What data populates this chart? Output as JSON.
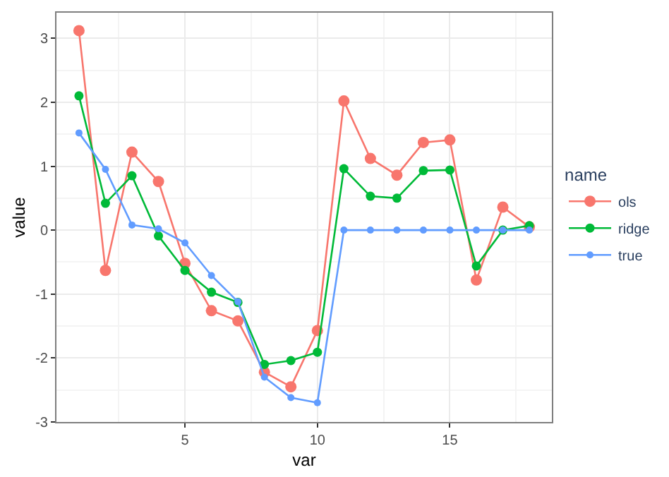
{
  "chart_data": {
    "type": "line",
    "xlabel": "var",
    "ylabel": "value",
    "legend_title": "name",
    "x": [
      1,
      2,
      3,
      4,
      5,
      6,
      7,
      8,
      9,
      10,
      11,
      12,
      13,
      14,
      15,
      16,
      17,
      18
    ],
    "series": [
      {
        "name": "ols",
        "color": "#f8766d",
        "values": [
          3.12,
          -0.63,
          1.22,
          0.76,
          -0.52,
          -1.26,
          -1.42,
          -2.22,
          -2.45,
          -1.57,
          2.02,
          1.12,
          0.86,
          1.37,
          1.41,
          -0.78,
          0.36,
          0.05
        ]
      },
      {
        "name": "ridge",
        "color": "#00ba38",
        "values": [
          2.1,
          0.42,
          0.85,
          -0.09,
          -0.63,
          -0.97,
          -1.13,
          -2.1,
          -2.04,
          -1.91,
          0.96,
          0.53,
          0.5,
          0.93,
          0.94,
          -0.56,
          0.0,
          0.07
        ]
      },
      {
        "name": "true",
        "color": "#619cff",
        "values": [
          1.52,
          0.95,
          0.08,
          0.02,
          -0.2,
          -0.71,
          -1.12,
          -2.3,
          -2.62,
          -2.7,
          0,
          0,
          0,
          0,
          0,
          0,
          0,
          0
        ]
      }
    ],
    "xlim": [
      0.15,
      18.85
    ],
    "xticks": [
      5,
      10,
      15
    ],
    "ylim": [
      -3,
      3.4
    ],
    "yticks": [
      -3,
      -2,
      -1,
      0,
      1,
      2,
      3
    ],
    "grid": true,
    "legend": "right",
    "marker": "circle",
    "line_style": "solid"
  }
}
